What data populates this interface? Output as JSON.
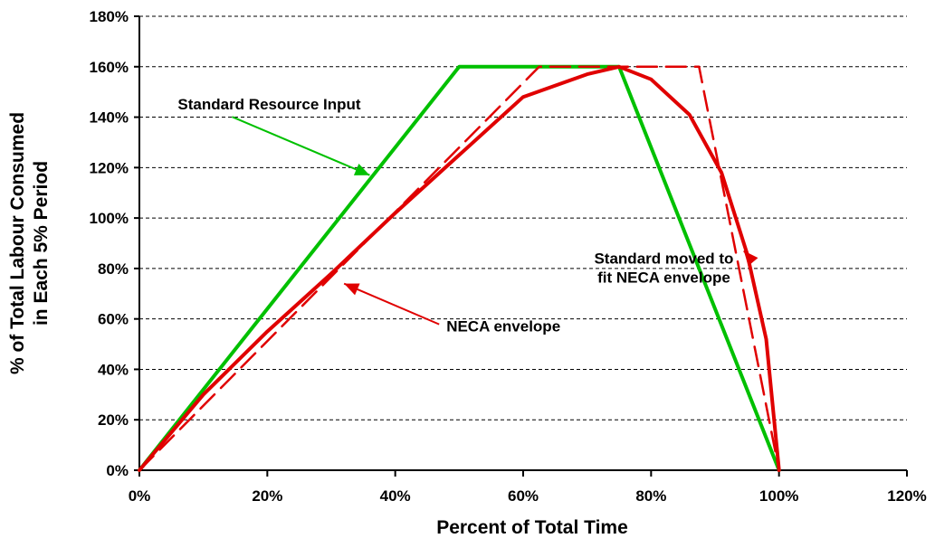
{
  "chart_data": {
    "type": "line",
    "xlabel": "Percent of Total Time",
    "ylabel_lines": [
      "% of Total Labour Consumed",
      "in Each 5% Period"
    ],
    "x_ticks": [
      "0%",
      "20%",
      "40%",
      "60%",
      "80%",
      "100%",
      "120%"
    ],
    "y_ticks": [
      "0%",
      "20%",
      "40%",
      "60%",
      "80%",
      "100%",
      "120%",
      "140%",
      "160%",
      "180%"
    ],
    "xlim": [
      0,
      120
    ],
    "ylim": [
      0,
      180
    ],
    "grid": "horizontal dashed",
    "series": [
      {
        "color": "#00c000",
        "dash": "solid",
        "points": [
          [
            0,
            0
          ],
          [
            50,
            160
          ],
          [
            75,
            160
          ],
          [
            100,
            0
          ]
        ]
      },
      {
        "color": "#e00000",
        "dash": "solid",
        "points": [
          [
            0,
            0
          ],
          [
            10,
            30
          ],
          [
            20,
            55
          ],
          [
            30,
            78
          ],
          [
            40,
            102
          ],
          [
            50,
            125
          ],
          [
            60,
            148
          ],
          [
            70,
            157
          ],
          [
            75,
            160
          ],
          [
            80,
            155
          ],
          [
            86,
            141
          ],
          [
            91,
            118
          ],
          [
            95,
            86
          ],
          [
            98,
            52
          ],
          [
            100,
            0
          ]
        ]
      },
      {
        "color": "#e00000",
        "dash": "dashed",
        "points": [
          [
            0,
            0
          ],
          [
            62.5,
            160
          ],
          [
            87.5,
            160
          ],
          [
            100,
            0
          ]
        ]
      }
    ],
    "annotations": [
      {
        "lines": [
          "Standard Resource Input"
        ],
        "x": 6,
        "y": 143,
        "anchor": "start",
        "arrow_color": "#00c000",
        "arrow_to": [
          36,
          117
        ]
      },
      {
        "lines": [
          "Standard moved to",
          "fit NECA envelope"
        ],
        "x": 82,
        "y": 82,
        "anchor": "middle",
        "arrow_color": "#e00000",
        "arrow_to": [
          94.5,
          87
        ]
      },
      {
        "lines": [
          "NECA envelope"
        ],
        "x": 48,
        "y": 55,
        "anchor": "start",
        "arrow_color": "#e00000",
        "arrow_to": [
          32,
          74
        ]
      }
    ]
  }
}
